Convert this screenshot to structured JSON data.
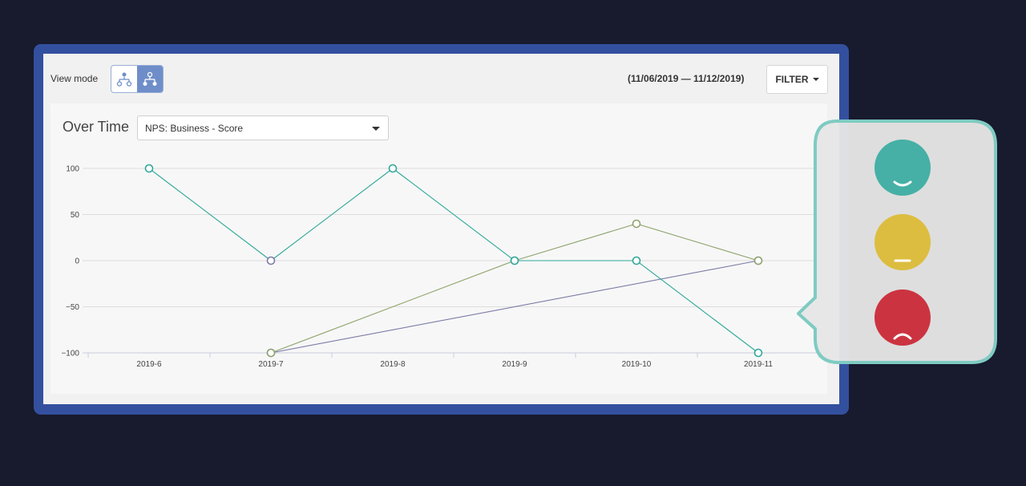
{
  "toolbar": {
    "view_mode_label": "View mode",
    "date_range": "(11/06/2019 — 11/12/2019)",
    "filter_label": "FILTER"
  },
  "chart_card": {
    "title": "Over Time",
    "metric_selected": "NPS: Business - Score"
  },
  "chart_data": {
    "type": "line",
    "categories": [
      "2019-6",
      "2019-7",
      "2019-8",
      "2019-9",
      "2019-10",
      "2019-11"
    ],
    "ylim": [
      -100,
      100
    ],
    "yticks": [
      100,
      50,
      0,
      -50,
      -100
    ],
    "grid": true,
    "series": [
      {
        "color": "#2fa89a",
        "values": [
          100,
          0,
          100,
          0,
          0,
          -100
        ]
      },
      {
        "color": "#8fa46e",
        "values": [
          null,
          -100,
          null,
          0,
          40,
          0
        ]
      },
      {
        "color": "#7b7ba6",
        "values": [
          null,
          -100,
          null,
          null,
          null,
          0
        ]
      }
    ],
    "point_rings": [
      {
        "series": 0,
        "index": 1,
        "color": "#7b7ba6"
      }
    ]
  },
  "legend_bubble": {
    "faces": [
      {
        "icon": "happy-face-icon",
        "color": "#46b0a6"
      },
      {
        "icon": "neutral-face-icon",
        "color": "#dcbd3f"
      },
      {
        "icon": "sad-face-icon",
        "color": "#cc3340"
      }
    ],
    "border_color": "#7ecbc2"
  },
  "colors": {
    "background": "#181a2e",
    "frame": "#33509f",
    "mode_active": "#6f8ec9"
  }
}
